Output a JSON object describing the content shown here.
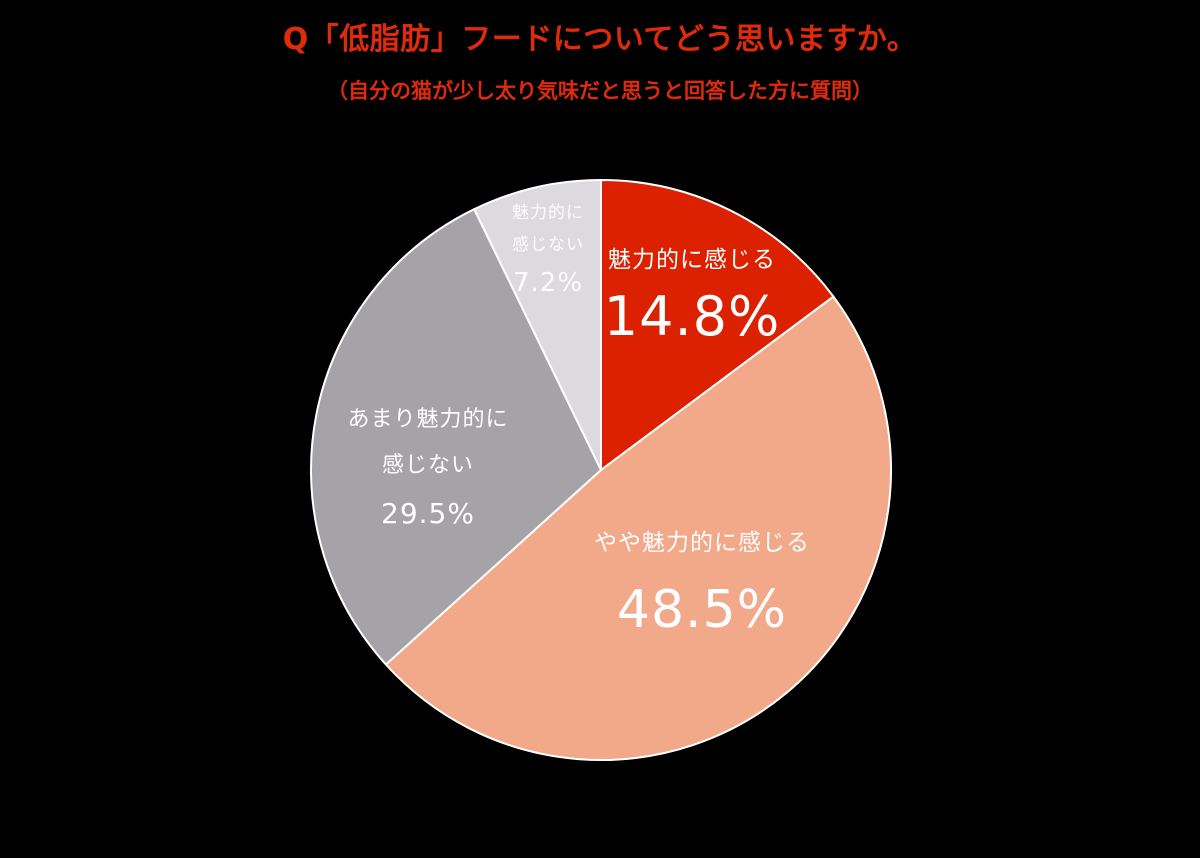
{
  "header": {
    "title": "Q「低脂肪」フードについてどう思いますか。",
    "subtitle": "（自分の猫が少し太り気味だと思うと回答した方に質問）"
  },
  "colors": {
    "background": "#000000",
    "title": "#E02A0C",
    "slice_strong_yes": "#DC2100",
    "slice_somewhat_yes": "#F2A98A",
    "slice_somewhat_no": "#A6A3A8",
    "slice_no": "#DDDADF",
    "label_text": "#FFFFFF"
  },
  "chart_data": {
    "type": "pie",
    "title": "Q「低脂肪」フードについてどう思いますか。",
    "subtitle": "（自分の猫が少し太り気味だと思うと回答した方に質問）",
    "start_angle": "12 o'clock, clockwise",
    "categories": [
      "魅力的に感じる",
      "やや魅力的に感じる",
      "あまり魅力的に感じない",
      "魅力的に感じない"
    ],
    "values": [
      14.8,
      48.5,
      29.5,
      7.2
    ],
    "unit": "%",
    "legend": "none (labels inside slices)",
    "slices": [
      {
        "name_lines": [
          "魅力的に感じる"
        ],
        "label": "14.8%",
        "value": 14.8,
        "color": "#DC2100"
      },
      {
        "name_lines": [
          "やや魅力的に感じる"
        ],
        "label": "48.5%",
        "value": 48.5,
        "color": "#F2A98A"
      },
      {
        "name_lines": [
          "あまり魅力的に",
          "感じない"
        ],
        "label": "29.5%",
        "value": 29.5,
        "color": "#A6A3A8"
      },
      {
        "name_lines": [
          "魅力的に",
          "感じない"
        ],
        "label": "7.2%",
        "value": 7.2,
        "color": "#DDDADF"
      }
    ]
  }
}
